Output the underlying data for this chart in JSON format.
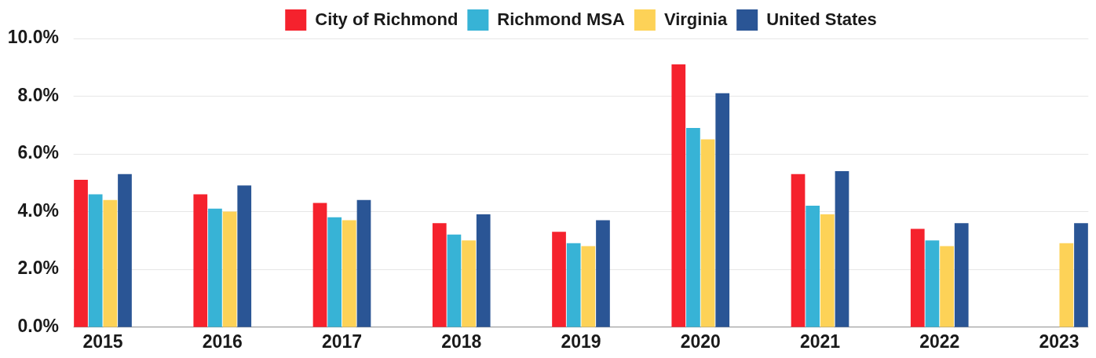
{
  "chart_data": {
    "type": "bar",
    "categories": [
      "2015",
      "2016",
      "2017",
      "2018",
      "2019",
      "2020",
      "2021",
      "2022",
      "2023"
    ],
    "series": [
      {
        "name": "City of Richmond",
        "color": "#f5222d",
        "values": [
          5.1,
          4.6,
          4.3,
          3.6,
          3.3,
          9.1,
          5.3,
          3.4,
          null
        ]
      },
      {
        "name": "Richmond MSA",
        "color": "#37b3d6",
        "values": [
          4.6,
          4.1,
          3.8,
          3.2,
          2.9,
          6.9,
          4.2,
          3.0,
          null
        ]
      },
      {
        "name": "Virginia",
        "color": "#fdd257",
        "values": [
          4.4,
          4.0,
          3.7,
          3.0,
          2.8,
          6.5,
          3.9,
          2.8,
          2.9
        ]
      },
      {
        "name": "United States",
        "color": "#2a5595",
        "values": [
          5.3,
          4.9,
          4.4,
          3.9,
          3.7,
          8.1,
          5.4,
          3.6,
          3.6
        ]
      }
    ],
    "ylim": [
      0,
      10
    ],
    "yticks": [
      {
        "value": 0,
        "label": "0.0%"
      },
      {
        "value": 2,
        "label": "2.0%"
      },
      {
        "value": 4,
        "label": "4.0%"
      },
      {
        "value": 6,
        "label": "6.0%"
      },
      {
        "value": 8,
        "label": "8.0%"
      },
      {
        "value": 10,
        "label": "10.0%"
      }
    ],
    "grid": "y",
    "legend": "top"
  }
}
